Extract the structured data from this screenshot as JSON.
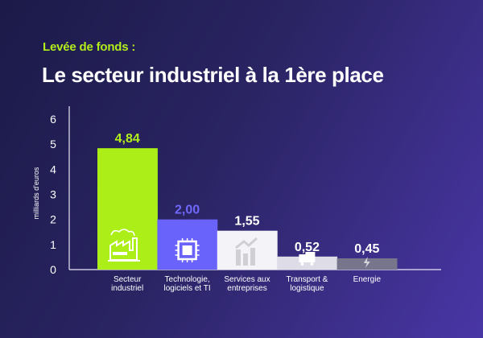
{
  "header": {
    "kicker": "Levée de fonds :",
    "title": "Le secteur industriel à la 1ère place"
  },
  "chart_data": {
    "type": "bar",
    "ylabel": "milliards d'euros",
    "xlabel": "",
    "ylim": [
      0,
      6
    ],
    "yticks": [
      "0",
      "1",
      "2",
      "3",
      "4",
      "5",
      "6"
    ],
    "grid": false,
    "categories": [
      [
        "Secteur",
        "industriel"
      ],
      [
        "Technologie,",
        "logiciels et TI"
      ],
      [
        "Services aux",
        "entreprises"
      ],
      [
        "Transport &",
        "logistique"
      ],
      [
        "Energie"
      ]
    ],
    "values": [
      4.84,
      2.0,
      1.55,
      0.52,
      0.45
    ],
    "value_labels": [
      "4,84",
      "2,00",
      "1,55",
      "0,52",
      "0,45"
    ],
    "bar_colors": [
      "#abee18",
      "#6a63fb",
      "#f4f3f8",
      "#dddce7",
      "#77758b"
    ],
    "label_colors": [
      "#b2ee1c",
      "#6f68fb",
      "#ffffff",
      "#ffffff",
      "#ffffff"
    ],
    "icons": [
      "factory-icon",
      "chip-icon",
      "growth-chart-icon",
      "truck-icon",
      "lightning-icon"
    ]
  }
}
